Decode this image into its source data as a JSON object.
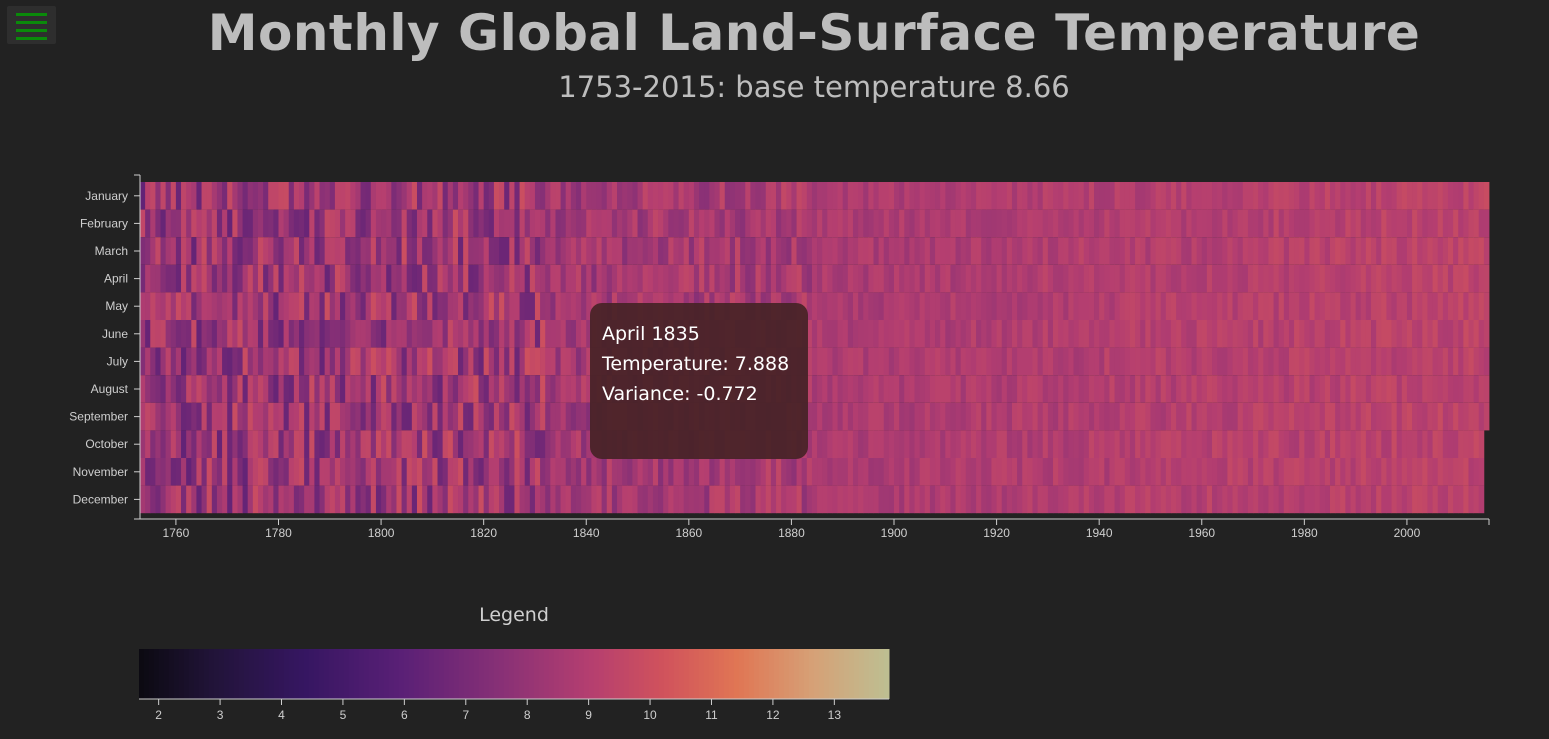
{
  "header": {
    "title": "Monthly Global Land-Surface Temperature",
    "subtitle": "1753-2015: base temperature 8.66"
  },
  "menu": {
    "icon": "hamburger-menu-icon",
    "color": "#0a8a0a"
  },
  "tooltip": {
    "month_year": "April 1835",
    "temperature": "Temperature: 7.888",
    "variance": "Variance: -0.772"
  },
  "legend": {
    "title": "Legend",
    "ticks": [
      2,
      3,
      4,
      5,
      6,
      7,
      8,
      9,
      10,
      11,
      12,
      13
    ],
    "range": [
      1.68,
      13.89
    ]
  },
  "chart_data": {
    "type": "heatmap",
    "title": "Monthly Global Land-Surface Temperature",
    "subtitle": "1753-2015: base temperature 8.66",
    "base_temperature": 8.66,
    "x_range": [
      1753,
      2015
    ],
    "x_ticks": [
      1760,
      1780,
      1800,
      1820,
      1840,
      1860,
      1880,
      1900,
      1920,
      1940,
      1960,
      1980,
      2000
    ],
    "y_categories": [
      "January",
      "February",
      "March",
      "April",
      "May",
      "June",
      "July",
      "August",
      "September",
      "October",
      "November",
      "December"
    ],
    "color_scale": "magma",
    "color_range": [
      1.68,
      13.89
    ],
    "grid": false,
    "legend_placement": "bottom-left",
    "highlighted_cell": {
      "month": "April",
      "year": 1835,
      "temperature": 7.888,
      "variance": -0.772
    }
  }
}
